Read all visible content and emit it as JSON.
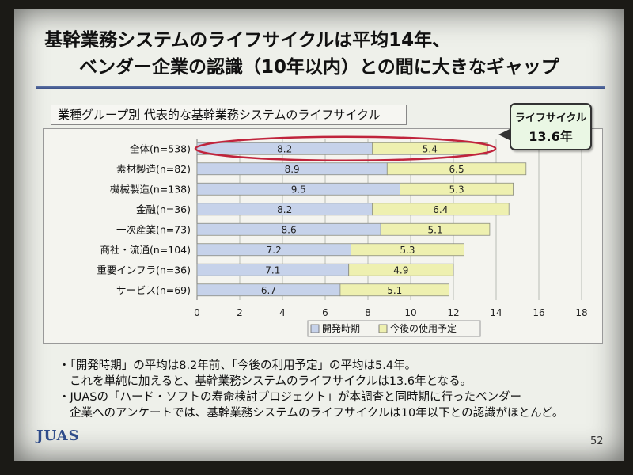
{
  "title": {
    "line1": "基幹業務システムのライフサイクルは平均14年、",
    "line2": "ベンダー企業の認識（10年以内）との間に大きなギャップ"
  },
  "chart_heading": "業種グループ別 代表的な基幹業務システムのライフサイクル",
  "callout": {
    "line1": "ライフサイクル",
    "line2": "13.6年"
  },
  "chart_data": {
    "type": "bar",
    "orientation": "horizontal",
    "stacked": true,
    "categories": [
      "全体(n=538)",
      "素材製造(n=82)",
      "機械製造(n=138)",
      "金融(n=36)",
      "一次産業(n=73)",
      "商社・流通(n=104)",
      "重要インフラ(n=36)",
      "サービス(n=69)"
    ],
    "series": [
      {
        "name": "開発時期",
        "values": [
          8.2,
          8.9,
          9.5,
          8.2,
          8.6,
          7.2,
          7.1,
          6.7
        ],
        "labels": [
          "8.2",
          "8.9",
          "9.5",
          "8.2",
          "8.6",
          "7.2",
          "7.1",
          "6.7"
        ]
      },
      {
        "name": "今後の使用予定",
        "values": [
          5.4,
          6.5,
          5.3,
          6.4,
          5.1,
          5.3,
          4.9,
          5.1
        ],
        "labels": [
          "5.4",
          "6.5",
          "5.3",
          "6.4",
          "5.1",
          "5.3",
          "4.9",
          "5.1"
        ]
      }
    ],
    "xlim": [
      0,
      18
    ],
    "xticks": [
      "0",
      "2",
      "4",
      "6",
      "8",
      "10",
      "12",
      "14",
      "16",
      "18"
    ],
    "grid": true,
    "legend": "bottom-center",
    "colors": {
      "dev": "#c6d2ea",
      "future": "#eef0b0",
      "ellipse": "#c0243c"
    }
  },
  "bullets": [
    "・「開発時期」の平均は8.2年前、「今後の利用予定」の平均は5.4年。",
    "これを単純に加えると、基幹業務システムのライフサイクルは13.6年となる。",
    "・JUASの「ハード・ソフトの寿命検討プロジェクト」が本調査と同時期に行ったベンダー",
    "企業へのアンケートでは、基幹業務システムのライフサイクルは10年以下との認識がほとんど。"
  ],
  "footer": {
    "logo": "JUAS",
    "page": "52"
  }
}
